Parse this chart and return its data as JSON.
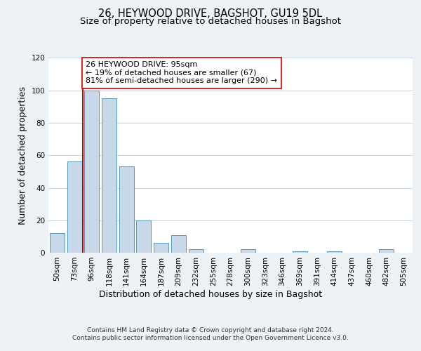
{
  "title": "26, HEYWOOD DRIVE, BAGSHOT, GU19 5DL",
  "subtitle": "Size of property relative to detached houses in Bagshot",
  "xlabel": "Distribution of detached houses by size in Bagshot",
  "ylabel": "Number of detached properties",
  "bar_labels": [
    "50sqm",
    "73sqm",
    "96sqm",
    "118sqm",
    "141sqm",
    "164sqm",
    "187sqm",
    "209sqm",
    "232sqm",
    "255sqm",
    "278sqm",
    "300sqm",
    "323sqm",
    "346sqm",
    "369sqm",
    "391sqm",
    "414sqm",
    "437sqm",
    "460sqm",
    "482sqm",
    "505sqm"
  ],
  "bar_values": [
    12,
    56,
    100,
    95,
    53,
    20,
    6,
    11,
    2,
    0,
    0,
    2,
    0,
    0,
    1,
    0,
    1,
    0,
    0,
    2,
    0
  ],
  "bar_color": "#c8d8e8",
  "bar_edge_color": "#5599bb",
  "ylim": [
    0,
    120
  ],
  "yticks": [
    0,
    20,
    40,
    60,
    80,
    100,
    120
  ],
  "property_line_index": 2,
  "property_line_color": "#cc0000",
  "annotation_text": "26 HEYWOOD DRIVE: 95sqm\n← 19% of detached houses are smaller (67)\n81% of semi-detached houses are larger (290) →",
  "annotation_box_color": "#ffffff",
  "annotation_box_edge": "#cc0000",
  "footer_line1": "Contains HM Land Registry data © Crown copyright and database right 2024.",
  "footer_line2": "Contains public sector information licensed under the Open Government Licence v3.0.",
  "background_color": "#edf2f7",
  "plot_background_color": "#ffffff",
  "grid_color": "#c8d4e0",
  "title_fontsize": 10.5,
  "subtitle_fontsize": 9.5,
  "axis_label_fontsize": 9,
  "tick_fontsize": 7.5,
  "annotation_fontsize": 8,
  "footer_fontsize": 6.5
}
